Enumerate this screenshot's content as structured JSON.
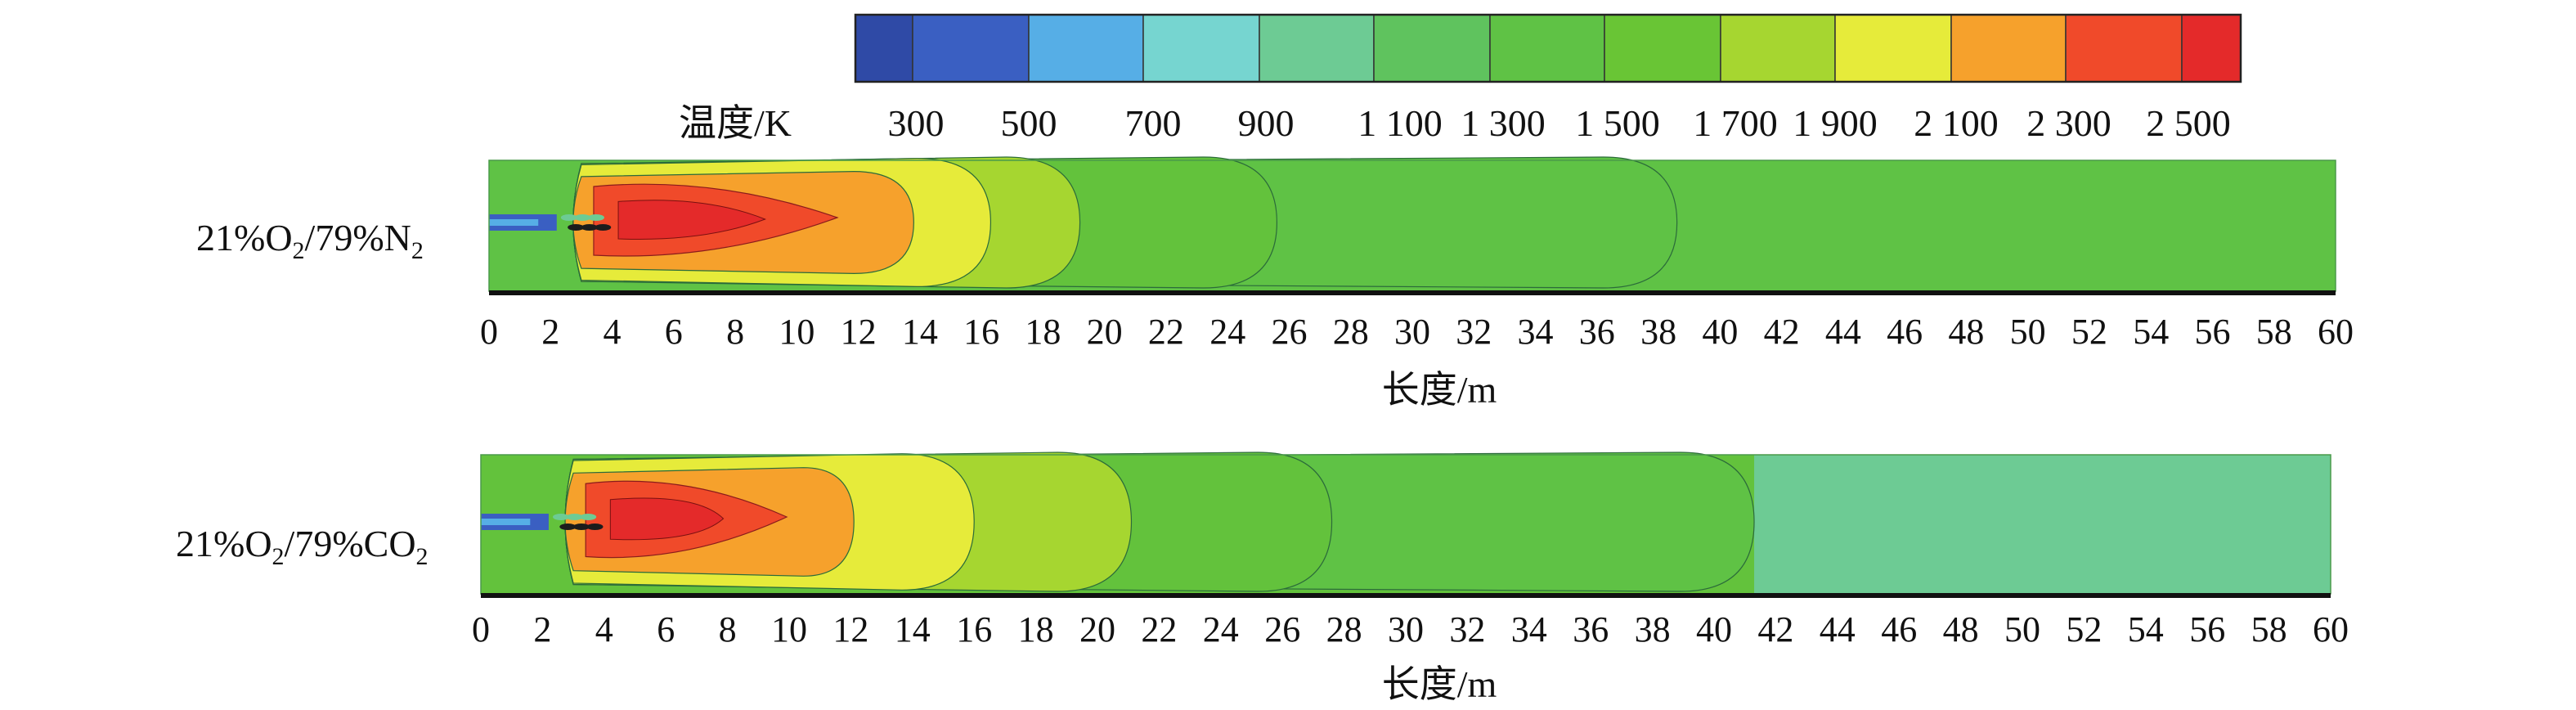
{
  "colorbar": {
    "label": "温度/K",
    "tick_labels": [
      "300",
      "500",
      "700",
      "900",
      "1 100",
      "1 300",
      "1 500",
      "1 700",
      "1 900",
      "2 100",
      "2 300",
      "2 500"
    ],
    "colors": [
      "#2f4aa6",
      "#3a5fc2",
      "#56aee6",
      "#76d5d0",
      "#6dcb94",
      "#5fc35e",
      "#5fc245",
      "#69c535",
      "#a6d630",
      "#e6eb3a",
      "#f6a12c",
      "#f04a2a",
      "#e42a2a"
    ]
  },
  "panels": [
    {
      "case_prefix": "21%O",
      "case_sub1": "2",
      "case_mid": "/79%N",
      "case_sub2": "2",
      "xlabel": "长度/m",
      "x_ticks": [
        "0",
        "2",
        "4",
        "6",
        "8",
        "10",
        "12",
        "14",
        "16",
        "18",
        "20",
        "22",
        "24",
        "26",
        "28",
        "30",
        "32",
        "34",
        "36",
        "38",
        "40",
        "42",
        "44",
        "46",
        "48",
        "50",
        "52",
        "54",
        "56",
        "58",
        "60"
      ],
      "contour_extents_m": {
        "orange_2100": 13.8,
        "yellow_1900": 16.3,
        "lightgreen_1700": 19.2,
        "green_1500": 25.6,
        "green_1300": 38.6,
        "far_field": 60
      }
    },
    {
      "case_prefix": "21%O",
      "case_sub1": "2",
      "case_mid": "/79%CO",
      "case_sub2": "2",
      "xlabel": "长度/m",
      "x_ticks": [
        "0",
        "2",
        "4",
        "6",
        "8",
        "10",
        "12",
        "14",
        "16",
        "18",
        "20",
        "22",
        "24",
        "26",
        "28",
        "30",
        "32",
        "34",
        "36",
        "38",
        "40",
        "42",
        "44",
        "46",
        "48",
        "50",
        "52",
        "54",
        "56",
        "58",
        "60"
      ],
      "contour_extents_m": {
        "orange_2100": 12.1,
        "yellow_1900": 16.0,
        "lightgreen_1700": 21.1,
        "green_1500": 27.6,
        "green_1300": 41.3,
        "far_field": 60
      }
    }
  ]
}
